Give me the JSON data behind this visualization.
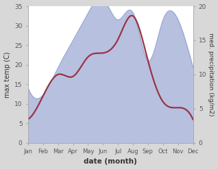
{
  "months": [
    "Jan",
    "Feb",
    "Mar",
    "Apr",
    "May",
    "Jun",
    "Jul",
    "Aug",
    "Sep",
    "Oct",
    "Nov",
    "Dec"
  ],
  "temp": [
    6,
    12,
    17.5,
    17,
    22,
    23,
    26.5,
    32.5,
    21,
    10.5,
    9,
    6
  ],
  "precip": [
    8,
    7,
    11,
    15,
    19,
    21,
    18,
    19,
    12,
    18,
    18,
    11
  ],
  "temp_color": "#993344",
  "precip_fill_color": "#b8c0e0",
  "precip_edge_color": "#9aa8d5",
  "xlabel": "date (month)",
  "ylabel_left": "max temp (C)",
  "ylabel_right": "med. precipitation (kg/m2)",
  "ylim_left": [
    0,
    35
  ],
  "ylim_right": [
    0,
    20
  ],
  "scale": 1.75,
  "fig_bg_color": "#d8d8d8",
  "plot_bg_color": "#ffffff",
  "spine_color": "#aaaaaa",
  "tick_color": "#555555",
  "label_color": "#333333"
}
